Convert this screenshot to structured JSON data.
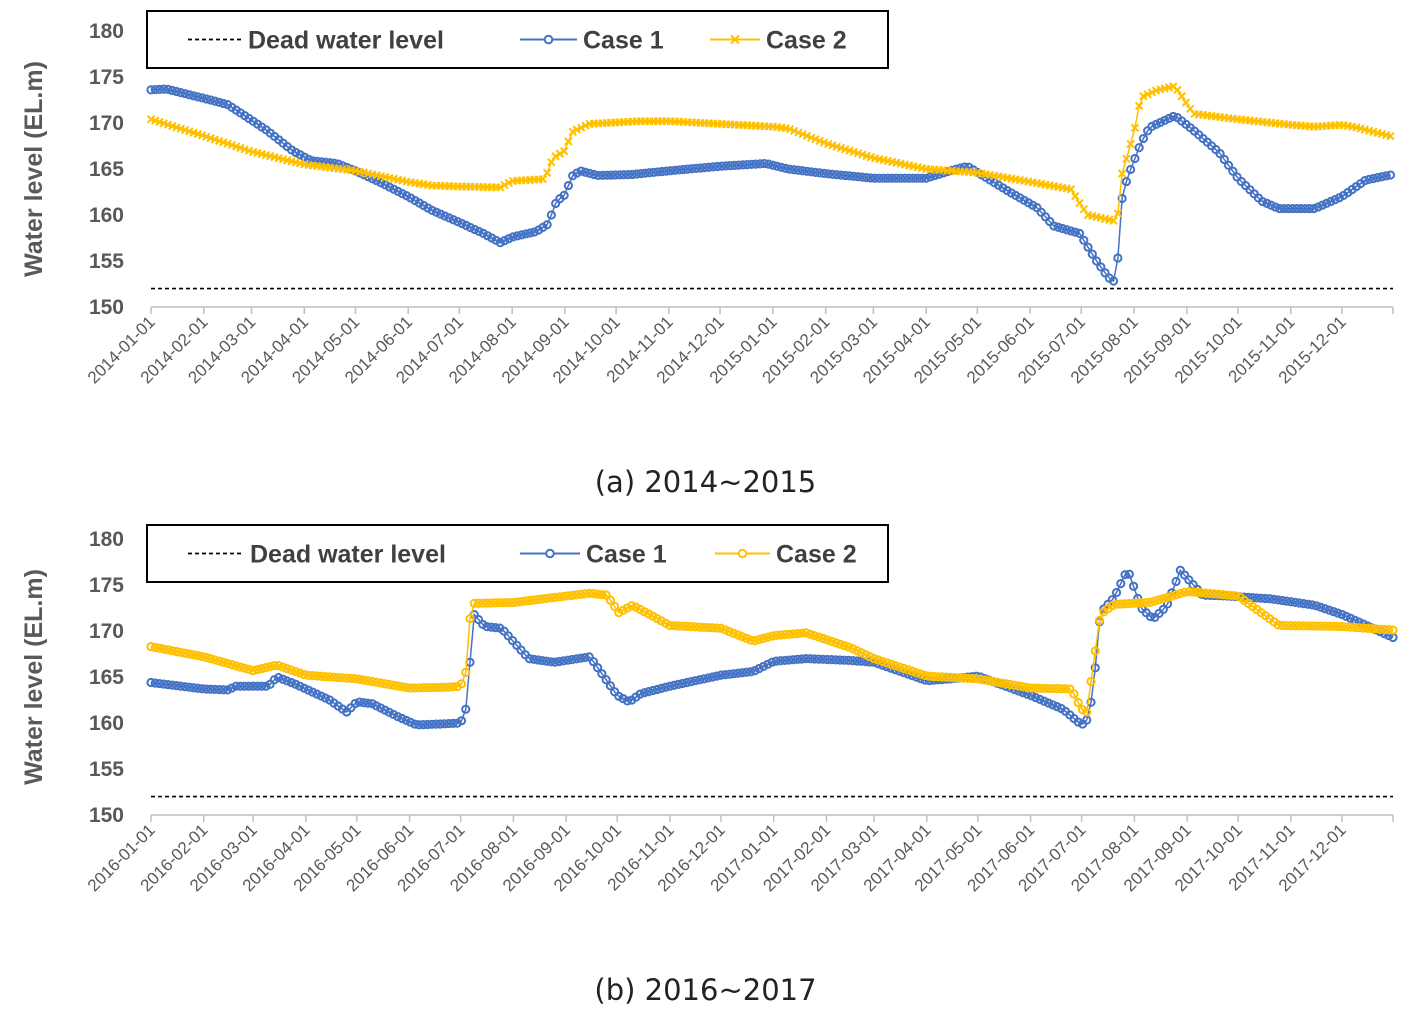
{
  "chart_data": [
    {
      "type": "line",
      "caption": "(a) 2014~2015",
      "ylabel": "Water level (EL.m)",
      "ylim": [
        150,
        180
      ],
      "yticks": [
        150,
        155,
        160,
        165,
        170,
        175,
        180
      ],
      "x_start": "2014-01-01",
      "x_end": "2015-12-31",
      "xtick_labels": [
        "2014-01-01",
        "2014-02-01",
        "2014-03-01",
        "2014-04-01",
        "2014-05-01",
        "2014-06-01",
        "2014-07-01",
        "2014-08-01",
        "2014-09-01",
        "2014-10-01",
        "2014-11-01",
        "2014-12-01",
        "2015-01-01",
        "2015-02-01",
        "2015-03-01",
        "2015-04-01",
        "2015-05-01",
        "2015-06-01",
        "2015-07-01",
        "2015-08-01",
        "2015-09-01",
        "2015-10-01",
        "2015-11-01",
        "2015-12-01"
      ],
      "legend": {
        "position": "top-left",
        "entries": [
          "Dead water level",
          "Case 1",
          "Case 2"
        ]
      },
      "series": [
        {
          "name": "Dead water level",
          "color": "#000000",
          "style": "dashed",
          "points": [
            [
              "2014-01-01",
              152
            ],
            [
              "2015-12-31",
              152
            ]
          ]
        },
        {
          "name": "Case 1",
          "color": "#4472C4",
          "marker": "circle",
          "points": [
            [
              "2014-01-01",
              173.6
            ],
            [
              "2014-01-10",
              173.7
            ],
            [
              "2014-01-25",
              173.0
            ],
            [
              "2014-02-05",
              172.5
            ],
            [
              "2014-02-15",
              172.0
            ],
            [
              "2014-02-25",
              170.8
            ],
            [
              "2014-03-10",
              169.2
            ],
            [
              "2014-03-25",
              167.0
            ],
            [
              "2014-04-05",
              165.9
            ],
            [
              "2014-04-20",
              165.6
            ],
            [
              "2014-05-01",
              164.8
            ],
            [
              "2014-05-15",
              163.6
            ],
            [
              "2014-06-01",
              162.0
            ],
            [
              "2014-06-15",
              160.5
            ],
            [
              "2014-07-01",
              159.2
            ],
            [
              "2014-07-15",
              158.0
            ],
            [
              "2014-07-25",
              157.0
            ],
            [
              "2014-08-01",
              157.6
            ],
            [
              "2014-08-15",
              158.2
            ],
            [
              "2014-08-22",
              159.0
            ],
            [
              "2014-08-27",
              161.5
            ],
            [
              "2014-09-01",
              162.2
            ],
            [
              "2014-09-05",
              164.2
            ],
            [
              "2014-09-10",
              164.8
            ],
            [
              "2014-09-20",
              164.3
            ],
            [
              "2014-10-10",
              164.4
            ],
            [
              "2014-11-01",
              164.8
            ],
            [
              "2014-12-01",
              165.3
            ],
            [
              "2014-12-28",
              165.6
            ],
            [
              "2015-01-10",
              165.0
            ],
            [
              "2015-02-01",
              164.5
            ],
            [
              "2015-03-01",
              164.0
            ],
            [
              "2015-04-01",
              164.0
            ],
            [
              "2015-04-15",
              164.8
            ],
            [
              "2015-04-25",
              165.3
            ],
            [
              "2015-05-05",
              164.2
            ],
            [
              "2015-05-20",
              162.5
            ],
            [
              "2015-06-05",
              160.8
            ],
            [
              "2015-06-15",
              158.8
            ],
            [
              "2015-06-30",
              158.0
            ],
            [
              "2015-07-10",
              155.0
            ],
            [
              "2015-07-17",
              153.2
            ],
            [
              "2015-07-21",
              152.7
            ],
            [
              "2015-07-23",
              156.2
            ],
            [
              "2015-07-25",
              161.8
            ],
            [
              "2015-07-28",
              164.0
            ],
            [
              "2015-08-05",
              167.8
            ],
            [
              "2015-08-10",
              169.5
            ],
            [
              "2015-08-25",
              170.8
            ],
            [
              "2015-09-05",
              169.2
            ],
            [
              "2015-09-20",
              166.8
            ],
            [
              "2015-10-01",
              164.0
            ],
            [
              "2015-10-15",
              161.5
            ],
            [
              "2015-10-25",
              160.7
            ],
            [
              "2015-11-15",
              160.7
            ],
            [
              "2015-12-01",
              162.0
            ],
            [
              "2015-12-15",
              163.8
            ],
            [
              "2015-12-31",
              164.4
            ]
          ]
        },
        {
          "name": "Case 2",
          "color": "#FFC000",
          "marker": "x",
          "points": [
            [
              "2014-01-01",
              170.4
            ],
            [
              "2014-02-01",
              168.6
            ],
            [
              "2014-03-01",
              166.9
            ],
            [
              "2014-04-01",
              165.5
            ],
            [
              "2014-05-01",
              164.8
            ],
            [
              "2014-06-01",
              163.6
            ],
            [
              "2014-06-15",
              163.2
            ],
            [
              "2014-07-01",
              163.1
            ],
            [
              "2014-07-25",
              163.0
            ],
            [
              "2014-08-01",
              163.7
            ],
            [
              "2014-08-20",
              163.9
            ],
            [
              "2014-08-25",
              166.2
            ],
            [
              "2014-09-01",
              167.0
            ],
            [
              "2014-09-05",
              169.0
            ],
            [
              "2014-09-15",
              169.9
            ],
            [
              "2014-10-15",
              170.2
            ],
            [
              "2014-11-01",
              170.2
            ],
            [
              "2014-12-01",
              169.9
            ],
            [
              "2015-01-01",
              169.6
            ],
            [
              "2015-01-10",
              169.4
            ],
            [
              "2015-02-01",
              167.8
            ],
            [
              "2015-03-01",
              166.2
            ],
            [
              "2015-04-01",
              165.0
            ],
            [
              "2015-05-01",
              164.6
            ],
            [
              "2015-06-01",
              163.6
            ],
            [
              "2015-06-25",
              162.8
            ],
            [
              "2015-07-01",
              161.0
            ],
            [
              "2015-07-05",
              160.0
            ],
            [
              "2015-07-22",
              159.3
            ],
            [
              "2015-07-25",
              164.5
            ],
            [
              "2015-08-01",
              169.0
            ],
            [
              "2015-08-05",
              172.8
            ],
            [
              "2015-08-15",
              173.6
            ],
            [
              "2015-08-25",
              174.0
            ],
            [
              "2015-09-05",
              171.0
            ],
            [
              "2015-10-01",
              170.4
            ],
            [
              "2015-11-01",
              169.8
            ],
            [
              "2015-11-15",
              169.6
            ],
            [
              "2015-12-01",
              169.8
            ],
            [
              "2015-12-10",
              169.5
            ],
            [
              "2015-12-31",
              168.5
            ]
          ]
        }
      ]
    },
    {
      "type": "line",
      "caption": "(b) 2016~2017",
      "ylabel": "Water level (EL.m)",
      "ylim": [
        150,
        180
      ],
      "yticks": [
        150,
        155,
        160,
        165,
        170,
        175,
        180
      ],
      "x_start": "2016-01-01",
      "x_end": "2017-12-31",
      "xtick_labels": [
        "2016-01-01",
        "2016-02-01",
        "2016-03-01",
        "2016-04-01",
        "2016-05-01",
        "2016-06-01",
        "2016-07-01",
        "2016-08-01",
        "2016-09-01",
        "2016-10-01",
        "2016-11-01",
        "2016-12-01",
        "2017-01-01",
        "2017-02-01",
        "2017-03-01",
        "2017-04-01",
        "2017-05-01",
        "2017-06-01",
        "2017-07-01",
        "2017-08-01",
        "2017-09-01",
        "2017-10-01",
        "2017-11-01",
        "2017-12-01"
      ],
      "legend": {
        "position": "top-left",
        "entries": [
          "Dead water level",
          "Case 1",
          "Case 2"
        ]
      },
      "series": [
        {
          "name": "Dead water level",
          "color": "#000000",
          "style": "dashed",
          "points": [
            [
              "2016-01-01",
              152
            ],
            [
              "2017-12-31",
              152
            ]
          ]
        },
        {
          "name": "Case 1",
          "color": "#4472C4",
          "marker": "circle",
          "points": [
            [
              "2016-01-01",
              164.4
            ],
            [
              "2016-02-01",
              163.7
            ],
            [
              "2016-02-15",
              163.6
            ],
            [
              "2016-02-20",
              164.0
            ],
            [
              "2016-03-10",
              164.0
            ],
            [
              "2016-03-15",
              165.0
            ],
            [
              "2016-03-25",
              164.3
            ],
            [
              "2016-04-15",
              162.5
            ],
            [
              "2016-04-25",
              161.2
            ],
            [
              "2016-05-01",
              162.3
            ],
            [
              "2016-05-10",
              162.1
            ],
            [
              "2016-05-25",
              160.7
            ],
            [
              "2016-06-05",
              159.8
            ],
            [
              "2016-06-20",
              159.9
            ],
            [
              "2016-07-01",
              160.0
            ],
            [
              "2016-07-04",
              161.5
            ],
            [
              "2016-07-06",
              164.8
            ],
            [
              "2016-07-08",
              172.0
            ],
            [
              "2016-07-15",
              170.5
            ],
            [
              "2016-07-25",
              170.3
            ],
            [
              "2016-08-10",
              167.0
            ],
            [
              "2016-08-25",
              166.6
            ],
            [
              "2016-09-15",
              167.2
            ],
            [
              "2016-10-01",
              163.0
            ],
            [
              "2016-10-08",
              162.3
            ],
            [
              "2016-10-15",
              163.2
            ],
            [
              "2016-11-01",
              164.0
            ],
            [
              "2016-12-01",
              165.2
            ],
            [
              "2016-12-20",
              165.6
            ],
            [
              "2017-01-01",
              166.7
            ],
            [
              "2017-01-20",
              167.0
            ],
            [
              "2017-02-15",
              166.8
            ],
            [
              "2017-03-01",
              166.6
            ],
            [
              "2017-04-01",
              164.6
            ],
            [
              "2017-04-15",
              164.8
            ],
            [
              "2017-05-01",
              165.1
            ],
            [
              "2017-06-01",
              163.0
            ],
            [
              "2017-06-20",
              161.5
            ],
            [
              "2017-07-01",
              159.8
            ],
            [
              "2017-07-05",
              160.5
            ],
            [
              "2017-07-08",
              164.0
            ],
            [
              "2017-07-12",
              172.0
            ],
            [
              "2017-07-20",
              173.6
            ],
            [
              "2017-07-28",
              176.7
            ],
            [
              "2017-08-05",
              172.5
            ],
            [
              "2017-08-12",
              171.3
            ],
            [
              "2017-08-20",
              172.7
            ],
            [
              "2017-08-28",
              176.6
            ],
            [
              "2017-09-10",
              173.9
            ],
            [
              "2017-09-25",
              173.8
            ],
            [
              "2017-10-20",
              173.5
            ],
            [
              "2017-11-15",
              172.8
            ],
            [
              "2017-12-01",
              171.8
            ],
            [
              "2017-12-31",
              169.3
            ]
          ]
        },
        {
          "name": "Case 2",
          "color": "#FFC000",
          "marker": "circle",
          "points": [
            [
              "2016-01-01",
              168.3
            ],
            [
              "2016-02-01",
              167.2
            ],
            [
              "2016-03-01",
              165.7
            ],
            [
              "2016-03-15",
              166.3
            ],
            [
              "2016-04-01",
              165.2
            ],
            [
              "2016-05-01",
              164.8
            ],
            [
              "2016-06-01",
              163.8
            ],
            [
              "2016-06-25",
              163.9
            ],
            [
              "2016-07-01",
              164.0
            ],
            [
              "2016-07-04",
              165.5
            ],
            [
              "2016-07-06",
              170.8
            ],
            [
              "2016-07-08",
              173.0
            ],
            [
              "2016-08-01",
              173.1
            ],
            [
              "2016-09-01",
              173.8
            ],
            [
              "2016-09-15",
              174.1
            ],
            [
              "2016-09-25",
              173.9
            ],
            [
              "2016-10-02",
              172.0
            ],
            [
              "2016-10-10",
              172.8
            ],
            [
              "2016-11-01",
              170.6
            ],
            [
              "2016-12-01",
              170.3
            ],
            [
              "2016-12-20",
              168.9
            ],
            [
              "2017-01-01",
              169.5
            ],
            [
              "2017-01-20",
              169.8
            ],
            [
              "2017-02-15",
              168.2
            ],
            [
              "2017-03-01",
              167.0
            ],
            [
              "2017-04-01",
              165.1
            ],
            [
              "2017-05-01",
              164.8
            ],
            [
              "2017-06-01",
              163.8
            ],
            [
              "2017-06-25",
              163.7
            ],
            [
              "2017-07-01",
              161.5
            ],
            [
              "2017-07-04",
              161.2
            ],
            [
              "2017-07-08",
              166.5
            ],
            [
              "2017-07-12",
              171.8
            ],
            [
              "2017-07-20",
              172.9
            ],
            [
              "2017-08-10",
              173.1
            ],
            [
              "2017-08-25",
              173.9
            ],
            [
              "2017-09-01",
              174.3
            ],
            [
              "2017-10-01",
              173.8
            ],
            [
              "2017-10-25",
              170.6
            ],
            [
              "2017-11-30",
              170.5
            ],
            [
              "2017-12-31",
              170.1
            ]
          ]
        }
      ]
    }
  ]
}
